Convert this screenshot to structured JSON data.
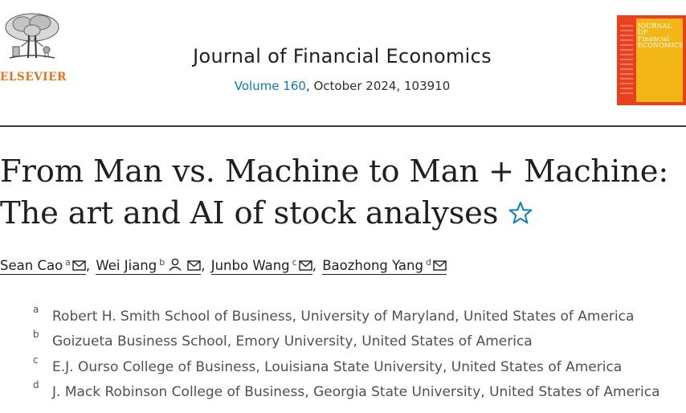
{
  "header": {
    "publisher": "ELSEVIER",
    "journal_title": "Journal of Financial Economics",
    "volume_label": "Volume 160",
    "issue_rest": ", October 2024, 103910",
    "cover": {
      "title_line1": "JOURNAL OF",
      "title_line2": "Financial",
      "title_line3": "ECONOMICS",
      "color_red": "#e9401f",
      "color_yellow": "#f2b616"
    }
  },
  "article": {
    "title_line1": "From Man vs. Machine to Man + Machine:",
    "title_line2": "The art and AI of stock analyses",
    "title_icon": "star-icon"
  },
  "authors": [
    {
      "name": "Sean Cao",
      "aff": "a",
      "icons": [
        "mail-icon"
      ]
    },
    {
      "name": "Wei Jiang",
      "aff": "b",
      "icons": [
        "person-icon",
        "mail-icon"
      ]
    },
    {
      "name": "Junbo Wang",
      "aff": "c",
      "icons": [
        "mail-icon"
      ]
    },
    {
      "name": "Baozhong Yang",
      "aff": "d",
      "icons": [
        "mail-icon"
      ]
    }
  ],
  "author_separator": ",",
  "affiliations": [
    {
      "letter": "a",
      "text": "Robert H. Smith School of Business, University of Maryland, United States of America"
    },
    {
      "letter": "b",
      "text": "Goizueta Business School, Emory University, United States of America"
    },
    {
      "letter": "c",
      "text": "E.J. Ourso College of Business, Louisiana State University, United States of America"
    },
    {
      "letter": "d",
      "text": "J. Mack Robinson College of Business, Georgia State University, United States of America"
    }
  ],
  "colors": {
    "link_blue": "#0c7dbb",
    "elsevier_orange": "#e9711c",
    "text_dark": "#1f1f1f",
    "text_gray": "#505050"
  }
}
